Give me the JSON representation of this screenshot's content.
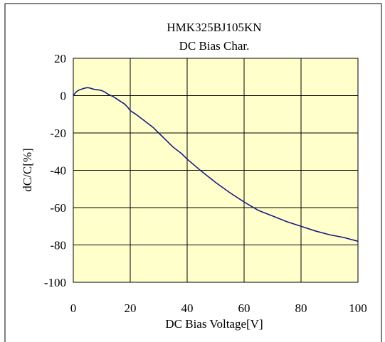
{
  "chart_data": {
    "type": "line",
    "title": "HMK325BJ105KN",
    "subtitle": "DC Bias Char.",
    "xlabel": "DC Bias Voltage[V]",
    "ylabel": "dC/C[%]",
    "xlim": [
      0,
      100
    ],
    "ylim": [
      -100,
      20
    ],
    "xticks": [
      "0",
      "20",
      "40",
      "60",
      "80",
      "100"
    ],
    "yticks": [
      "20",
      "0",
      "-20",
      "-40",
      "-60",
      "-80",
      "-100"
    ],
    "grid": true,
    "legend": "none",
    "colors": {
      "plot_bg": "#ffffcc",
      "line": "#1a1a80",
      "grid": "#000000"
    },
    "series": [
      {
        "x": [
          0,
          1,
          2,
          3,
          4,
          5,
          6,
          7,
          8,
          9,
          10,
          11,
          12,
          13,
          14,
          15,
          16,
          17,
          18,
          19,
          20,
          22,
          25,
          28,
          30,
          33,
          35,
          38,
          40,
          45,
          50,
          55,
          60,
          65,
          70,
          75,
          80,
          85,
          90,
          95,
          100
        ],
        "y": [
          0,
          2,
          3,
          3.5,
          4,
          4.3,
          4,
          3.5,
          3.2,
          3,
          2.7,
          2,
          1,
          0.2,
          -0.5,
          -1.5,
          -2.5,
          -3.5,
          -4.5,
          -6,
          -8,
          -10,
          -13.5,
          -17,
          -20,
          -24.5,
          -27.5,
          -31,
          -34,
          -40.5,
          -46.5,
          -52,
          -57,
          -61.5,
          -64.5,
          -67.5,
          -70,
          -72.5,
          -74.5,
          -76,
          -78
        ]
      }
    ]
  }
}
